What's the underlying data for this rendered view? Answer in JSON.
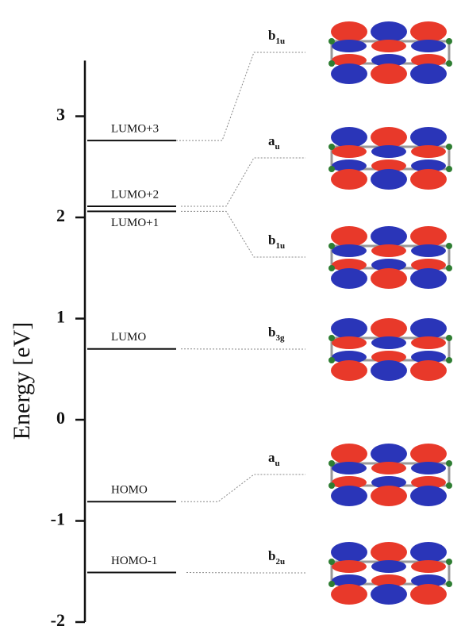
{
  "chart_data": {
    "type": "energy-level",
    "y_label": "Energy [eV]",
    "ylim": [
      -2,
      3.55
    ],
    "yticks": [
      -2,
      -1,
      0,
      1,
      2,
      3
    ],
    "categories": [
      "HOMO-1",
      "HOMO",
      "LUMO",
      "LUMO+1",
      "LUMO+2",
      "LUMO+3"
    ],
    "values": [
      -1.51,
      -0.81,
      0.7,
      2.06,
      2.11,
      2.76
    ],
    "symmetry": [
      {
        "base": "b",
        "sub": "2u"
      },
      {
        "base": "a",
        "sub": "u"
      },
      {
        "base": "b",
        "sub": "3g"
      },
      {
        "base": "b",
        "sub": "1u"
      },
      {
        "base": "a",
        "sub": "u"
      },
      {
        "base": "b",
        "sub": "1u"
      }
    ],
    "color": "#111111"
  }
}
